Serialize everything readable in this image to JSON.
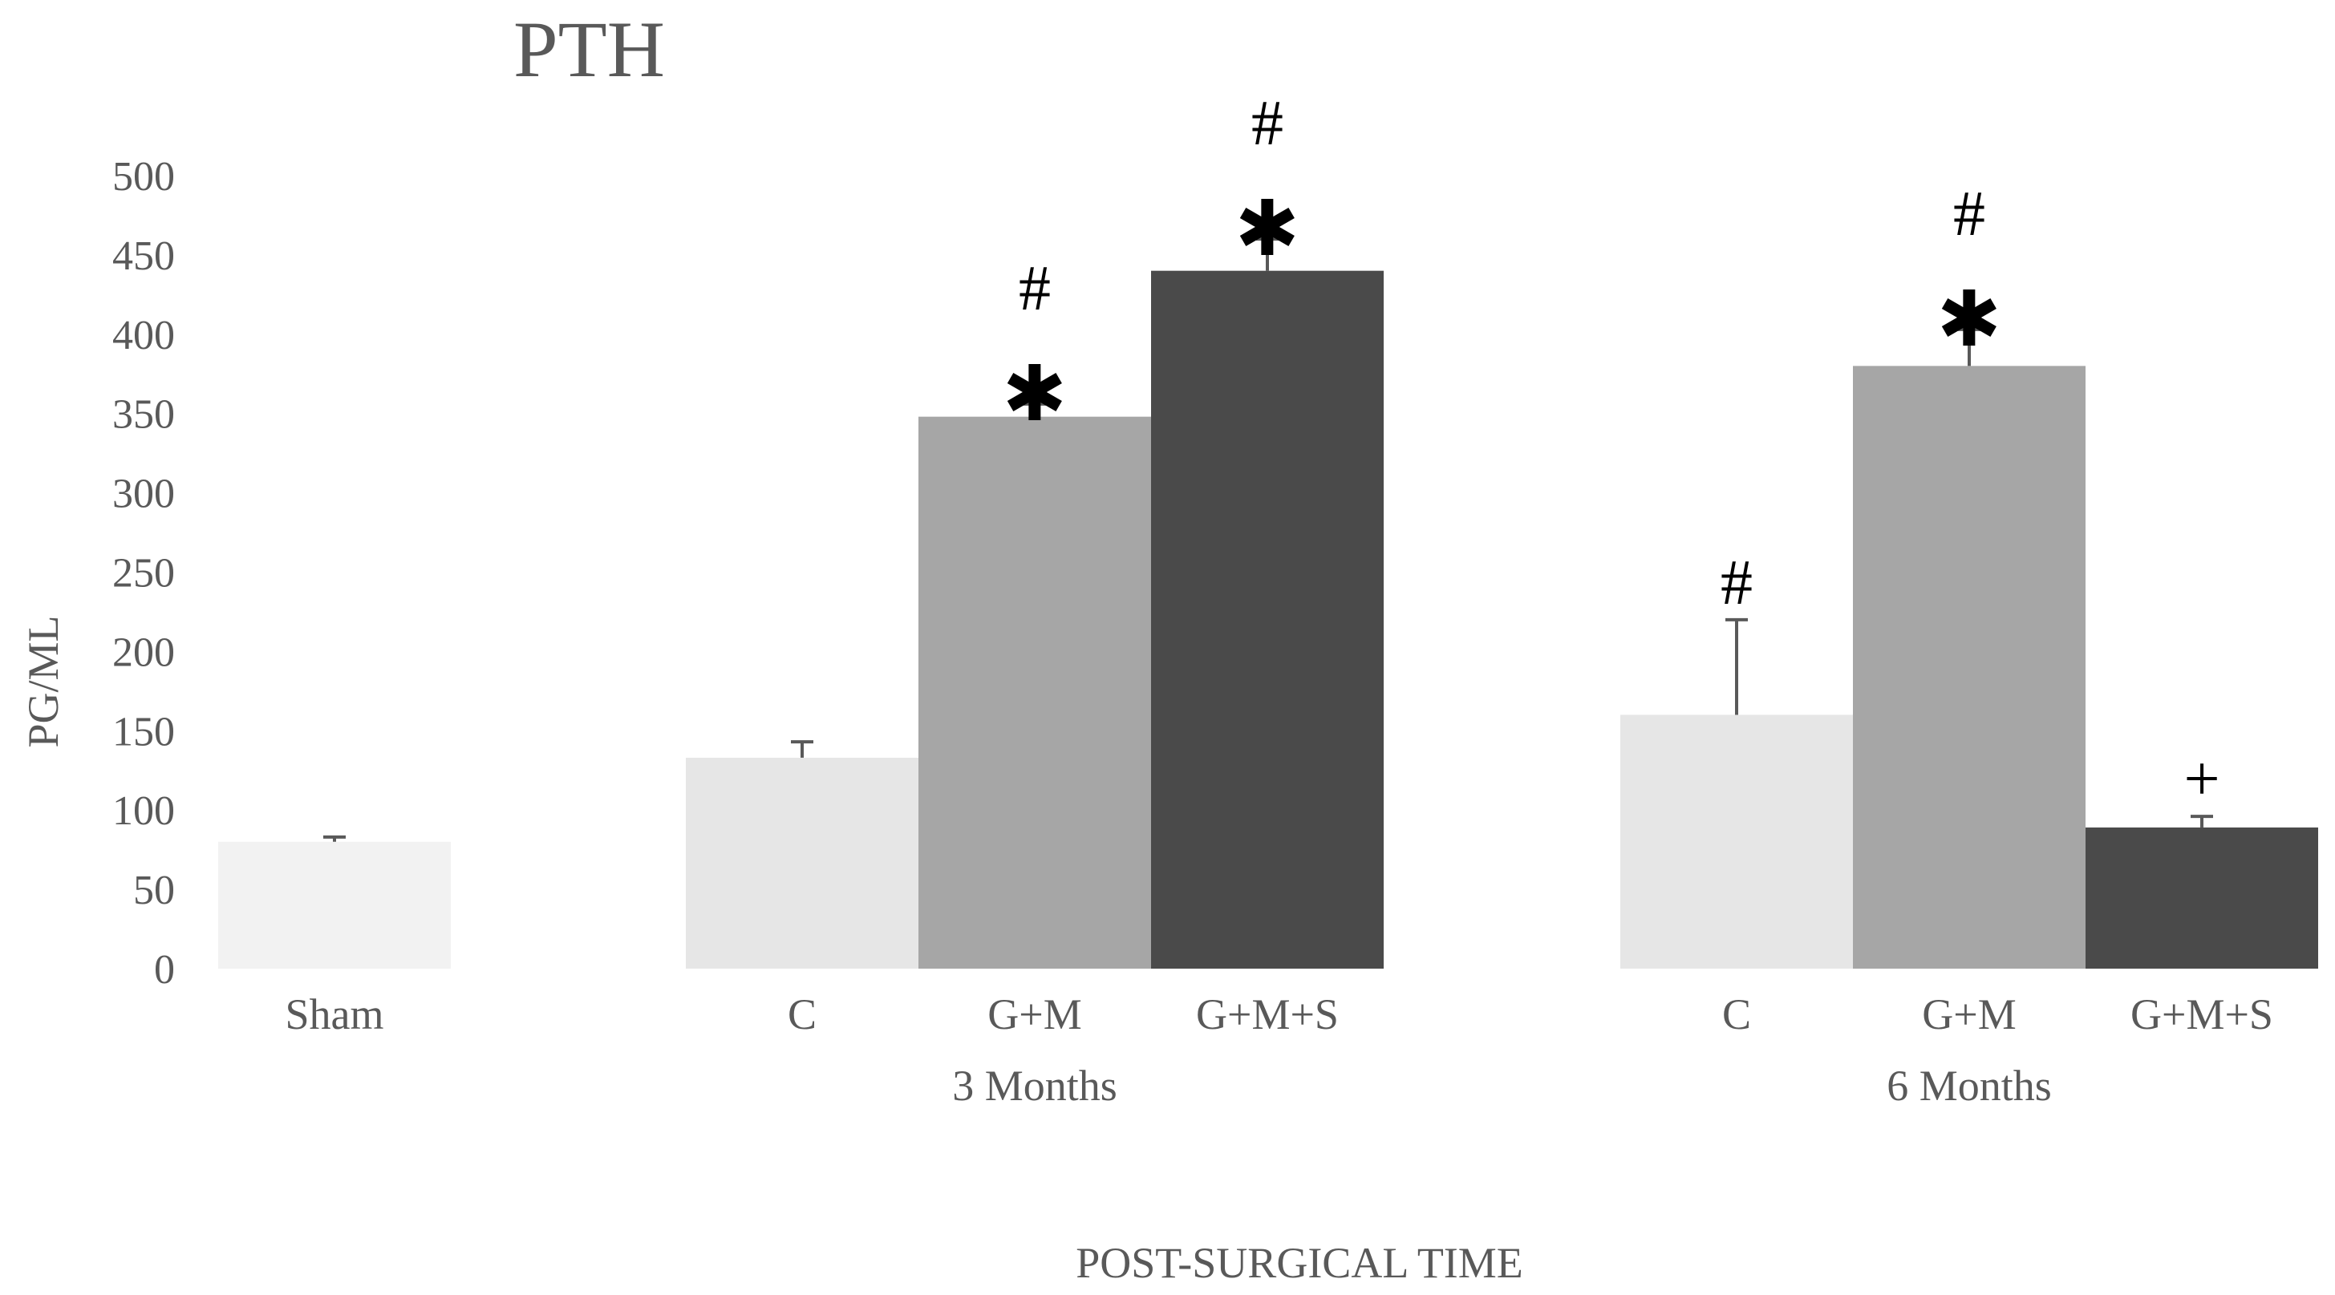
{
  "chart_data": {
    "type": "bar",
    "title": "PTH",
    "xlabel": "POST-SURGICAL TIME",
    "ylabel": "PG/ML",
    "ylim": [
      0,
      500
    ],
    "yticks": [
      "0",
      "50",
      "100",
      "150",
      "200",
      "250",
      "300",
      "350",
      "400",
      "450",
      "500"
    ],
    "grid": false,
    "legend": "none",
    "groups": [
      {
        "label": "",
        "bars": [
          {
            "category": "Sham",
            "value": 80,
            "error": 3,
            "color": "#f2f2f2",
            "annotations": []
          }
        ]
      },
      {
        "label": "3 Months",
        "bars": [
          {
            "category": "C",
            "value": 133,
            "error": 10,
            "color": "#e6e6e6",
            "annotations": []
          },
          {
            "category": "G+M",
            "value": 348,
            "error": 8,
            "color": "#a6a6a6",
            "annotations": [
              "#",
              "*"
            ]
          },
          {
            "category": "G+M+S",
            "value": 440,
            "error": 20,
            "color": "#4a4a4a",
            "annotations": [
              "#",
              "*"
            ]
          }
        ]
      },
      {
        "label": "6 Months",
        "bars": [
          {
            "category": "C",
            "value": 160,
            "error": 60,
            "color": "#e6e6e6",
            "annotations": [
              "#"
            ]
          },
          {
            "category": "G+M",
            "value": 380,
            "error": 23,
            "color": "#a6a6a6",
            "annotations": [
              "#",
              "*"
            ]
          },
          {
            "category": "G+M+S",
            "value": 89,
            "error": 7,
            "color": "#4a4a4a",
            "annotations": [
              "+"
            ]
          }
        ]
      }
    ]
  }
}
